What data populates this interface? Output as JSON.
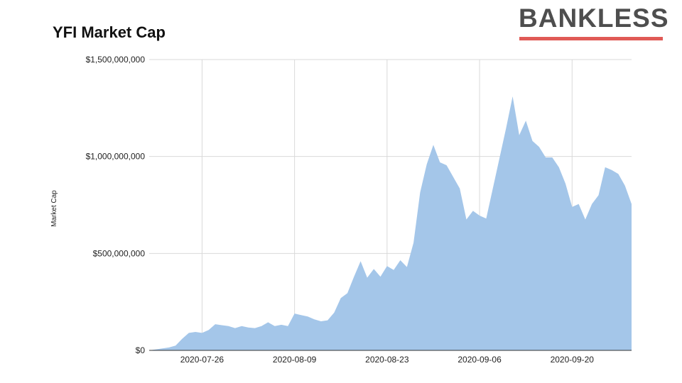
{
  "header": {
    "brand": "BANKLESS",
    "brand_underline_color": "#e05a56"
  },
  "chart_data": {
    "type": "area",
    "title": "YFI Market Cap",
    "ylabel": "Market Cap",
    "xlabel": "",
    "ylim": [
      0,
      1500000000
    ],
    "y_ticks": [
      {
        "value": 0,
        "label": "$0"
      },
      {
        "value": 500000000,
        "label": "$500,000,000"
      },
      {
        "value": 1000000000,
        "label": "$1,000,000,000"
      },
      {
        "value": 1500000000,
        "label": "$1,500,000,000"
      }
    ],
    "x_range": [
      "2020-07-18",
      "2020-09-29"
    ],
    "x_ticks": [
      "2020-07-26",
      "2020-08-09",
      "2020-08-23",
      "2020-09-06",
      "2020-09-20"
    ],
    "grid": true,
    "color": "#a4c6e9",
    "series": [
      {
        "x": [
          "2020-07-18",
          "2020-07-19",
          "2020-07-20",
          "2020-07-21",
          "2020-07-22",
          "2020-07-23",
          "2020-07-24",
          "2020-07-25",
          "2020-07-26",
          "2020-07-27",
          "2020-07-28",
          "2020-07-29",
          "2020-07-30",
          "2020-07-31",
          "2020-08-01",
          "2020-08-02",
          "2020-08-03",
          "2020-08-04",
          "2020-08-05",
          "2020-08-06",
          "2020-08-07",
          "2020-08-08",
          "2020-08-09",
          "2020-08-10",
          "2020-08-11",
          "2020-08-12",
          "2020-08-13",
          "2020-08-14",
          "2020-08-15",
          "2020-08-16",
          "2020-08-17",
          "2020-08-18",
          "2020-08-19",
          "2020-08-20",
          "2020-08-21",
          "2020-08-22",
          "2020-08-23",
          "2020-08-24",
          "2020-08-25",
          "2020-08-26",
          "2020-08-27",
          "2020-08-28",
          "2020-08-29",
          "2020-08-30",
          "2020-08-31",
          "2020-09-01",
          "2020-09-02",
          "2020-09-03",
          "2020-09-04",
          "2020-09-05",
          "2020-09-06",
          "2020-09-07",
          "2020-09-08",
          "2020-09-09",
          "2020-09-10",
          "2020-09-11",
          "2020-09-12",
          "2020-09-13",
          "2020-09-14",
          "2020-09-15",
          "2020-09-16",
          "2020-09-17",
          "2020-09-18",
          "2020-09-19",
          "2020-09-20",
          "2020-09-21",
          "2020-09-22",
          "2020-09-23",
          "2020-09-24",
          "2020-09-25",
          "2020-09-26",
          "2020-09-27",
          "2020-09-28",
          "2020-09-29"
        ],
        "values": [
          0,
          5000000,
          10000000,
          15000000,
          25000000,
          60000000,
          90000000,
          95000000,
          90000000,
          105000000,
          135000000,
          130000000,
          125000000,
          115000000,
          125000000,
          118000000,
          115000000,
          125000000,
          145000000,
          125000000,
          132000000,
          125000000,
          190000000,
          182000000,
          175000000,
          160000000,
          150000000,
          155000000,
          195000000,
          270000000,
          295000000,
          380000000,
          460000000,
          375000000,
          420000000,
          380000000,
          435000000,
          415000000,
          465000000,
          430000000,
          555000000,
          815000000,
          960000000,
          1060000000,
          970000000,
          955000000,
          895000000,
          835000000,
          675000000,
          720000000,
          695000000,
          680000000,
          835000000,
          990000000,
          1145000000,
          1310000000,
          1110000000,
          1185000000,
          1080000000,
          1050000000,
          995000000,
          995000000,
          945000000,
          860000000,
          740000000,
          755000000,
          675000000,
          755000000,
          800000000,
          945000000,
          930000000,
          910000000,
          850000000,
          755000000
        ]
      }
    ]
  }
}
